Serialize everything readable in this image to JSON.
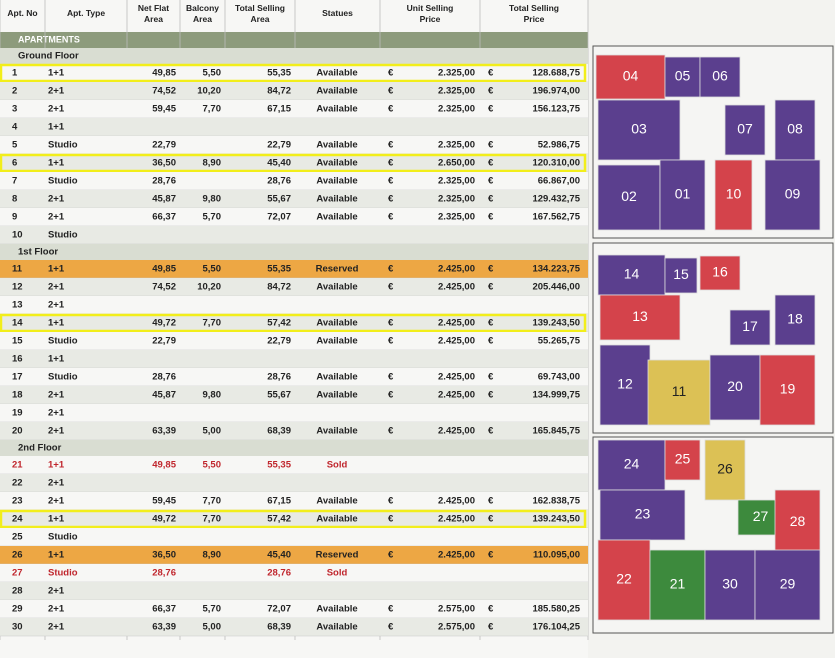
{
  "table": {
    "headers": [
      "Apt. No",
      "Apt. Type",
      "Net Flat Area",
      "Balcony Area",
      "Total Selling Area",
      "Statues",
      "Unit Selling Price",
      "Total Selling Price"
    ],
    "section": "APARTMENTS",
    "currency": "€",
    "groups": [
      {
        "name": "Ground Floor",
        "rows": [
          {
            "no": "1",
            "type": "1+1",
            "net": "49,85",
            "balcony": "5,50",
            "total": "55,35",
            "status": "Available",
            "price": "2.325,00",
            "total_price": "128.688,75",
            "highlight": true
          },
          {
            "no": "2",
            "type": "2+1",
            "net": "74,52",
            "balcony": "10,20",
            "total": "84,72",
            "status": "Available",
            "price": "2.325,00",
            "total_price": "196.974,00"
          },
          {
            "no": "3",
            "type": "2+1",
            "net": "59,45",
            "balcony": "7,70",
            "total": "67,15",
            "status": "Available",
            "price": "2.325,00",
            "total_price": "156.123,75"
          },
          {
            "no": "4",
            "type": "1+1"
          },
          {
            "no": "5",
            "type": "Studio",
            "net": "22,79",
            "total": "22,79",
            "status": "Available",
            "price": "2.325,00",
            "total_price": "52.986,75"
          },
          {
            "no": "6",
            "type": "1+1",
            "net": "36,50",
            "balcony": "8,90",
            "total": "45,40",
            "status": "Available",
            "price": "2.650,00",
            "total_price": "120.310,00",
            "highlight": true
          },
          {
            "no": "7",
            "type": "Studio",
            "net": "28,76",
            "total": "28,76",
            "status": "Available",
            "price": "2.325,00",
            "total_price": "66.867,00"
          },
          {
            "no": "8",
            "type": "2+1",
            "net": "45,87",
            "balcony": "9,80",
            "total": "55,67",
            "status": "Available",
            "price": "2.325,00",
            "total_price": "129.432,75"
          },
          {
            "no": "9",
            "type": "2+1",
            "net": "66,37",
            "balcony": "5,70",
            "total": "72,07",
            "status": "Available",
            "price": "2.325,00",
            "total_price": "167.562,75"
          },
          {
            "no": "10",
            "type": "Studio"
          }
        ]
      },
      {
        "name": "1st Floor",
        "rows": [
          {
            "no": "11",
            "type": "1+1",
            "net": "49,85",
            "balcony": "5,50",
            "total": "55,35",
            "status": "Reserved",
            "price": "2.425,00",
            "total_price": "134.223,75",
            "state": "reserved"
          },
          {
            "no": "12",
            "type": "2+1",
            "net": "74,52",
            "balcony": "10,20",
            "total": "84,72",
            "status": "Available",
            "price": "2.425,00",
            "total_price": "205.446,00"
          },
          {
            "no": "13",
            "type": "2+1"
          },
          {
            "no": "14",
            "type": "1+1",
            "net": "49,72",
            "balcony": "7,70",
            "total": "57,42",
            "status": "Available",
            "price": "2.425,00",
            "total_price": "139.243,50",
            "highlight": true
          },
          {
            "no": "15",
            "type": "Studio",
            "net": "22,79",
            "total": "22,79",
            "status": "Available",
            "price": "2.425,00",
            "total_price": "55.265,75"
          },
          {
            "no": "16",
            "type": "1+1"
          },
          {
            "no": "17",
            "type": "Studio",
            "net": "28,76",
            "total": "28,76",
            "status": "Available",
            "price": "2.425,00",
            "total_price": "69.743,00"
          },
          {
            "no": "18",
            "type": "2+1",
            "net": "45,87",
            "balcony": "9,80",
            "total": "55,67",
            "status": "Available",
            "price": "2.425,00",
            "total_price": "134.999,75"
          },
          {
            "no": "19",
            "type": "2+1"
          },
          {
            "no": "20",
            "type": "2+1",
            "net": "63,39",
            "balcony": "5,00",
            "total": "68,39",
            "status": "Available",
            "price": "2.425,00",
            "total_price": "165.845,75"
          }
        ]
      },
      {
        "name": "2nd Floor",
        "rows": [
          {
            "no": "21",
            "type": "1+1",
            "net": "49,85",
            "balcony": "5,50",
            "total": "55,35",
            "status": "Sold",
            "state": "sold"
          },
          {
            "no": "22",
            "type": "2+1"
          },
          {
            "no": "23",
            "type": "2+1",
            "net": "59,45",
            "balcony": "7,70",
            "total": "67,15",
            "status": "Available",
            "price": "2.425,00",
            "total_price": "162.838,75"
          },
          {
            "no": "24",
            "type": "1+1",
            "net": "49,72",
            "balcony": "7,70",
            "total": "57,42",
            "status": "Available",
            "price": "2.425,00",
            "total_price": "139.243,50",
            "highlight": true
          },
          {
            "no": "25",
            "type": "Studio"
          },
          {
            "no": "26",
            "type": "1+1",
            "net": "36,50",
            "balcony": "8,90",
            "total": "45,40",
            "status": "Reserved",
            "price": "2.425,00",
            "total_price": "110.095,00",
            "state": "reserved"
          },
          {
            "no": "27",
            "type": "Studio",
            "net": "28,76",
            "total": "28,76",
            "status": "Sold",
            "state": "sold"
          },
          {
            "no": "28",
            "type": "2+1"
          },
          {
            "no": "29",
            "type": "2+1",
            "net": "66,37",
            "balcony": "5,70",
            "total": "72,07",
            "status": "Available",
            "price": "2.575,00",
            "total_price": "185.580,25"
          },
          {
            "no": "30",
            "type": "2+1",
            "net": "63,39",
            "balcony": "5,00",
            "total": "68,39",
            "status": "Available",
            "price": "2.575,00",
            "total_price": "176.104,25"
          }
        ]
      }
    ]
  },
  "plans": [
    {
      "units": [
        {
          "label": "04",
          "color": "#d4434b"
        },
        {
          "label": "05",
          "color": "#5b3f8e"
        },
        {
          "label": "06",
          "color": "#5b3f8e"
        },
        {
          "label": "03",
          "color": "#5b3f8e"
        },
        {
          "label": "07",
          "color": "#5b3f8e"
        },
        {
          "label": "08",
          "color": "#5b3f8e"
        },
        {
          "label": "02",
          "color": "#5b3f8e"
        },
        {
          "label": "01",
          "color": "#5b3f8e"
        },
        {
          "label": "10",
          "color": "#d4434b"
        },
        {
          "label": "09",
          "color": "#5b3f8e"
        }
      ]
    },
    {
      "units": [
        {
          "label": "14",
          "color": "#5b3f8e"
        },
        {
          "label": "15",
          "color": "#5b3f8e"
        },
        {
          "label": "16",
          "color": "#d4434b"
        },
        {
          "label": "13",
          "color": "#d4434b"
        },
        {
          "label": "17",
          "color": "#5b3f8e"
        },
        {
          "label": "18",
          "color": "#5b3f8e"
        },
        {
          "label": "12",
          "color": "#5b3f8e"
        },
        {
          "label": "11",
          "color": "#dcc155"
        },
        {
          "label": "20",
          "color": "#5b3f8e"
        },
        {
          "label": "19",
          "color": "#d4434b"
        }
      ]
    },
    {
      "units": [
        {
          "label": "24",
          "color": "#5b3f8e"
        },
        {
          "label": "25",
          "color": "#d4434b"
        },
        {
          "label": "26",
          "color": "#dcc155"
        },
        {
          "label": "23",
          "color": "#5b3f8e"
        },
        {
          "label": "27",
          "color": "#3d8a3d"
        },
        {
          "label": "28",
          "color": "#d4434b"
        },
        {
          "label": "22",
          "color": "#d4434b"
        },
        {
          "label": "21",
          "color": "#3d8a3d"
        },
        {
          "label": "30",
          "color": "#5b3f8e"
        },
        {
          "label": "29",
          "color": "#5b3f8e"
        }
      ]
    }
  ]
}
